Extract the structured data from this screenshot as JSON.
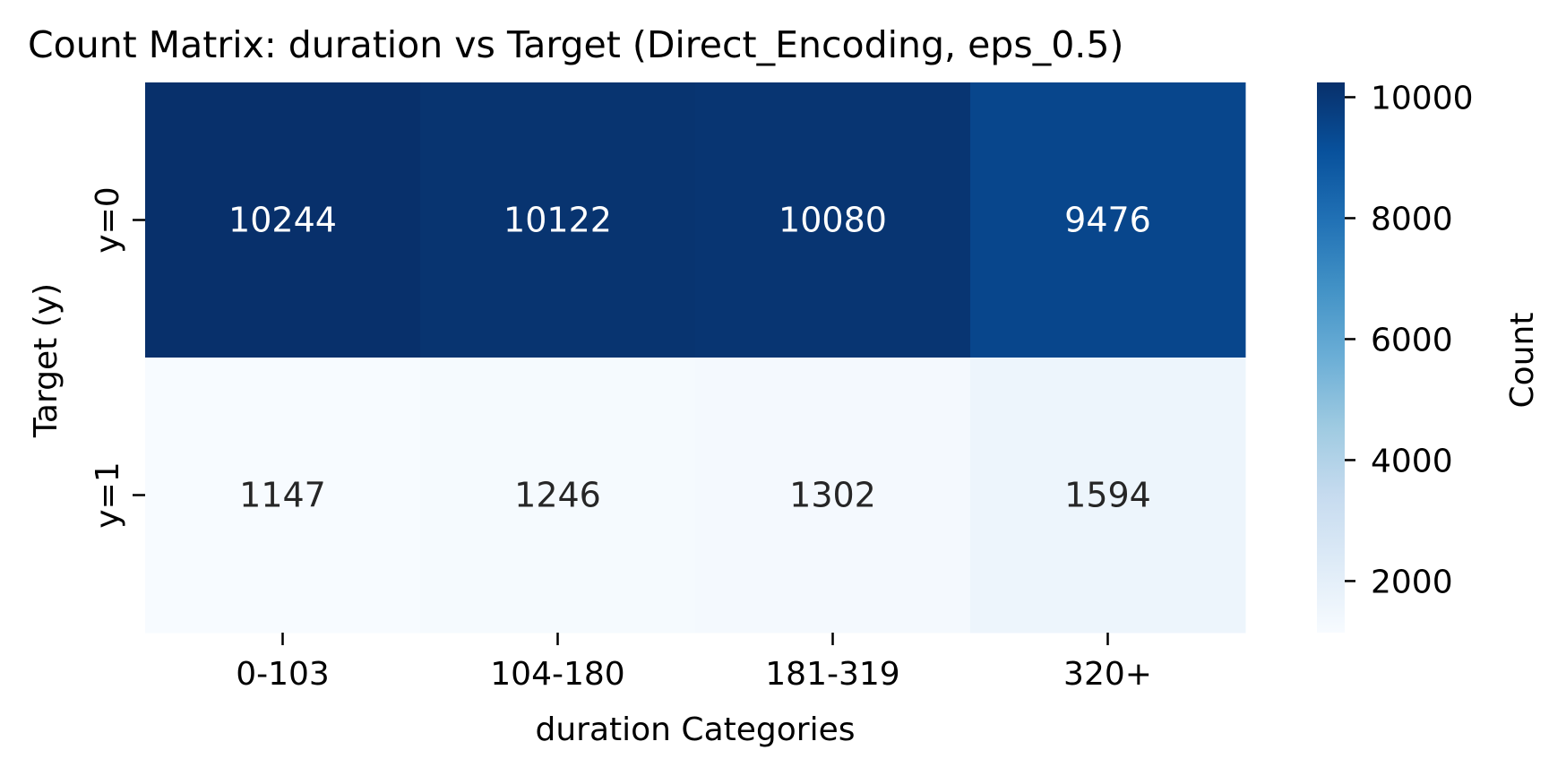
{
  "chart_data": {
    "type": "heatmap",
    "title": "Count Matrix: duration vs Target (Direct_Encoding, eps_0.5)",
    "xlabel": "duration Categories",
    "ylabel": "Target (y)",
    "x_categories": [
      "0-103",
      "104-180",
      "181-319",
      "320+"
    ],
    "y_categories": [
      "y=0",
      "y=1"
    ],
    "values": [
      [
        10244,
        10122,
        10080,
        9476
      ],
      [
        1147,
        1246,
        1302,
        1594
      ]
    ],
    "colorbar": {
      "label": "Count",
      "ticks": [
        2000,
        4000,
        6000,
        8000,
        10000
      ],
      "range": [
        1147,
        10244
      ],
      "colormap": "Blues"
    },
    "colors": {
      "colormap_stops": [
        "#f7fbff",
        "#deebf7",
        "#c6dbef",
        "#9ecae1",
        "#6baed6",
        "#4292c6",
        "#2171b5",
        "#08519c",
        "#08306b"
      ],
      "dark_text": "#262626",
      "light_text": "#ffffff"
    }
  }
}
